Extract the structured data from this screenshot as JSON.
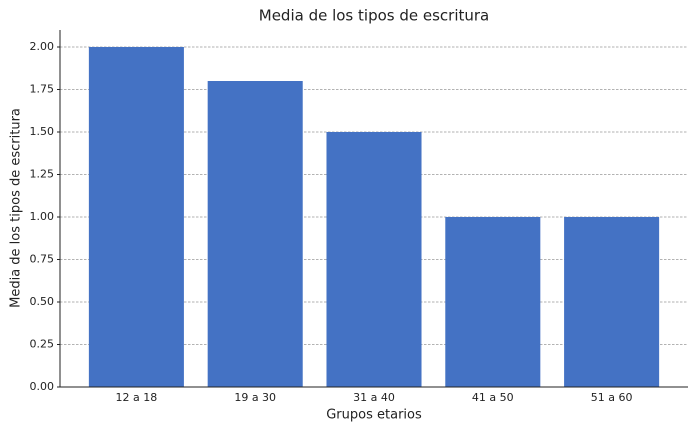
{
  "chart_data": {
    "type": "bar",
    "title": "Media de los tipos de escritura",
    "x_label": "Grupos etarios",
    "y_label": "Media de los tipos de escritura",
    "categories": [
      "12 a 18",
      "19 a 30",
      "31 a 40",
      "41 a 50",
      "51 a 60"
    ],
    "values": [
      2.0,
      1.8,
      1.5,
      1.0,
      1.0
    ],
    "color": "#4472c4",
    "ylim": [
      0,
      2.1
    ],
    "yticks": [
      {
        "value": 0,
        "label": "0.00"
      },
      {
        "value": 0.25,
        "label": "0.25"
      },
      {
        "value": 0.5,
        "label": "0.50"
      },
      {
        "value": 0.75,
        "label": "0.75"
      },
      {
        "value": 1,
        "label": "1.00"
      },
      {
        "value": 1.25,
        "label": "1.25"
      },
      {
        "value": 1.5,
        "label": "1.50"
      },
      {
        "value": 1.75,
        "label": "1.75"
      },
      {
        "value": 2,
        "label": "2.00"
      }
    ],
    "grid": true
  }
}
